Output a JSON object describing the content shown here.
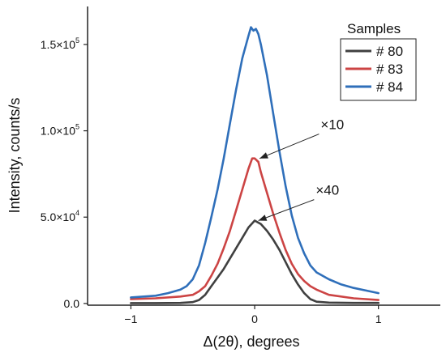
{
  "chart_data": {
    "type": "line",
    "xlabel": "Δ(2θ), degrees",
    "ylabel": "Intensity, counts/s",
    "xlim": [
      -1.35,
      1.5
    ],
    "ylim": [
      -1000,
      172000
    ],
    "x_ticks": [
      {
        "value": -1,
        "label": "−1"
      },
      {
        "value": 0,
        "label": "0"
      },
      {
        "value": 1,
        "label": "1"
      }
    ],
    "y_ticks": [
      {
        "value": 0,
        "mantissa": "0.0",
        "exp": ""
      },
      {
        "value": 50000,
        "mantissa": "5.0×10",
        "exp": "4"
      },
      {
        "value": 100000,
        "mantissa": "1.0×10",
        "exp": "5"
      },
      {
        "value": 150000,
        "mantissa": "1.5×10",
        "exp": "5"
      }
    ],
    "grid": false,
    "legend": {
      "title": "Samples",
      "position": "top-right"
    },
    "series": [
      {
        "name": "# 80",
        "color": "#404040",
        "x": [
          -1.0,
          -0.8,
          -0.6,
          -0.5,
          -0.45,
          -0.4,
          -0.35,
          -0.3,
          -0.25,
          -0.2,
          -0.15,
          -0.1,
          -0.05,
          0.0,
          0.05,
          0.1,
          0.15,
          0.2,
          0.25,
          0.3,
          0.35,
          0.4,
          0.45,
          0.5,
          0.6,
          0.8,
          1.0
        ],
        "y": [
          200,
          200,
          300,
          800,
          2000,
          5000,
          10000,
          15000,
          20000,
          26000,
          32000,
          38000,
          44000,
          48000,
          46000,
          42000,
          37000,
          31000,
          24000,
          17000,
          11000,
          6000,
          2500,
          1000,
          500,
          300,
          300
        ]
      },
      {
        "name": "# 83",
        "color": "#cc4444",
        "x": [
          -1.0,
          -0.8,
          -0.6,
          -0.5,
          -0.45,
          -0.4,
          -0.35,
          -0.3,
          -0.25,
          -0.2,
          -0.15,
          -0.1,
          -0.05,
          -0.02,
          0.0,
          0.03,
          0.05,
          0.1,
          0.15,
          0.2,
          0.25,
          0.3,
          0.35,
          0.4,
          0.45,
          0.5,
          0.6,
          0.8,
          1.0
        ],
        "y": [
          2500,
          3000,
          4000,
          5000,
          7000,
          10000,
          16000,
          23000,
          32000,
          42000,
          54000,
          66000,
          78000,
          84000,
          84000,
          82000,
          76000,
          64000,
          52000,
          41000,
          31000,
          23000,
          17000,
          13000,
          10000,
          8000,
          5000,
          3000,
          2000
        ]
      },
      {
        "name": "# 84",
        "color": "#2f6fba",
        "x": [
          -1.0,
          -0.8,
          -0.7,
          -0.6,
          -0.55,
          -0.5,
          -0.45,
          -0.4,
          -0.35,
          -0.3,
          -0.25,
          -0.2,
          -0.15,
          -0.1,
          -0.05,
          -0.03,
          -0.01,
          0.01,
          0.03,
          0.05,
          0.1,
          0.15,
          0.2,
          0.25,
          0.3,
          0.35,
          0.4,
          0.45,
          0.5,
          0.6,
          0.7,
          0.8,
          0.9,
          1.0
        ],
        "y": [
          3500,
          4500,
          6000,
          8000,
          10000,
          14000,
          22000,
          35000,
          50000,
          66000,
          84000,
          104000,
          124000,
          142000,
          155000,
          160000,
          158000,
          159000,
          156000,
          150000,
          132000,
          110000,
          88000,
          68000,
          51000,
          38000,
          29000,
          22000,
          18000,
          14000,
          11000,
          9000,
          7500,
          6000
        ]
      }
    ],
    "annotations": [
      {
        "text": "×10",
        "target_x": 0.04,
        "target_y": 84000,
        "label_x": 0.52,
        "label_y": 100000
      },
      {
        "text": "×40",
        "target_x": 0.03,
        "target_y": 48000,
        "label_x": 0.48,
        "label_y": 62000
      }
    ]
  }
}
